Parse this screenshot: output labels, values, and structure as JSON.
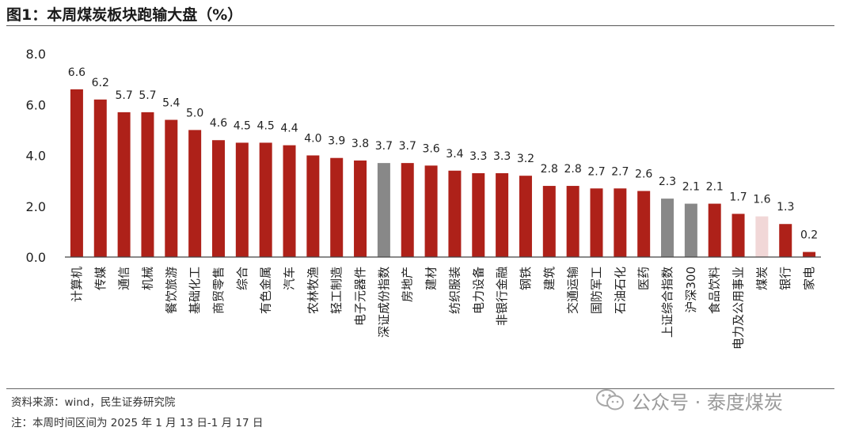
{
  "figure": {
    "title": "图1：本周煤炭板块跑输大盘（%）",
    "source": "资料来源：wind，民生证券研究院",
    "note": "注：本周时间区间为 2025 年 1 月 13 日-1 月 17 日",
    "watermark": "公众号 · 泰度煤炭",
    "watermark_icon": "wechat-icon"
  },
  "colors": {
    "industry": "#ae2119",
    "index": "#888888",
    "coal": "#f1d7d7"
  },
  "chart_data": {
    "type": "bar",
    "title": "",
    "xlabel": "",
    "ylabel": "",
    "ylim": [
      0,
      8
    ],
    "yticks": [
      "0.0",
      "2.0",
      "4.0",
      "6.0",
      "8.0"
    ],
    "grid": false,
    "categories": [
      "计算机",
      "传媒",
      "通信",
      "机械",
      "餐饮旅游",
      "基础化工",
      "商贸零售",
      "综合",
      "有色金属",
      "汽车",
      "农林牧渔",
      "轻工制造",
      "电子元器件",
      "深证成份指数",
      "房地产",
      "建材",
      "纺织服装",
      "电力设备",
      "非银行金融",
      "钢铁",
      "建筑",
      "交通运输",
      "国防军工",
      "石油石化",
      "医药",
      "上证综合指数",
      "沪深300",
      "食品饮料",
      "电力及公用事业",
      "煤炭",
      "银行",
      "家电"
    ],
    "values": [
      6.6,
      6.2,
      5.7,
      5.7,
      5.4,
      5.0,
      4.6,
      4.5,
      4.5,
      4.4,
      4.0,
      3.9,
      3.8,
      3.7,
      3.7,
      3.6,
      3.4,
      3.3,
      3.3,
      3.2,
      2.8,
      2.8,
      2.7,
      2.7,
      2.6,
      2.3,
      2.1,
      2.1,
      1.7,
      1.6,
      1.3,
      0.2
    ],
    "labels": [
      "6.6",
      "6.2",
      "5.7",
      "5.7",
      "5.4",
      "5.0",
      "4.6",
      "4.5",
      "4.5",
      "4.4",
      "4.0",
      "3.9",
      "3.8",
      "3.7",
      "3.7",
      "3.6",
      "3.4",
      "3.3",
      "3.3",
      "3.2",
      "2.8",
      "2.8",
      "2.7",
      "2.7",
      "2.6",
      "2.3",
      "2.1",
      "2.1",
      "1.7",
      "1.6",
      "1.3",
      "0.2"
    ],
    "bar_kind": [
      "industry",
      "industry",
      "industry",
      "industry",
      "industry",
      "industry",
      "industry",
      "industry",
      "industry",
      "industry",
      "industry",
      "industry",
      "industry",
      "index",
      "industry",
      "industry",
      "industry",
      "industry",
      "industry",
      "industry",
      "industry",
      "industry",
      "industry",
      "industry",
      "industry",
      "index",
      "index",
      "industry",
      "industry",
      "coal",
      "industry",
      "industry"
    ]
  }
}
